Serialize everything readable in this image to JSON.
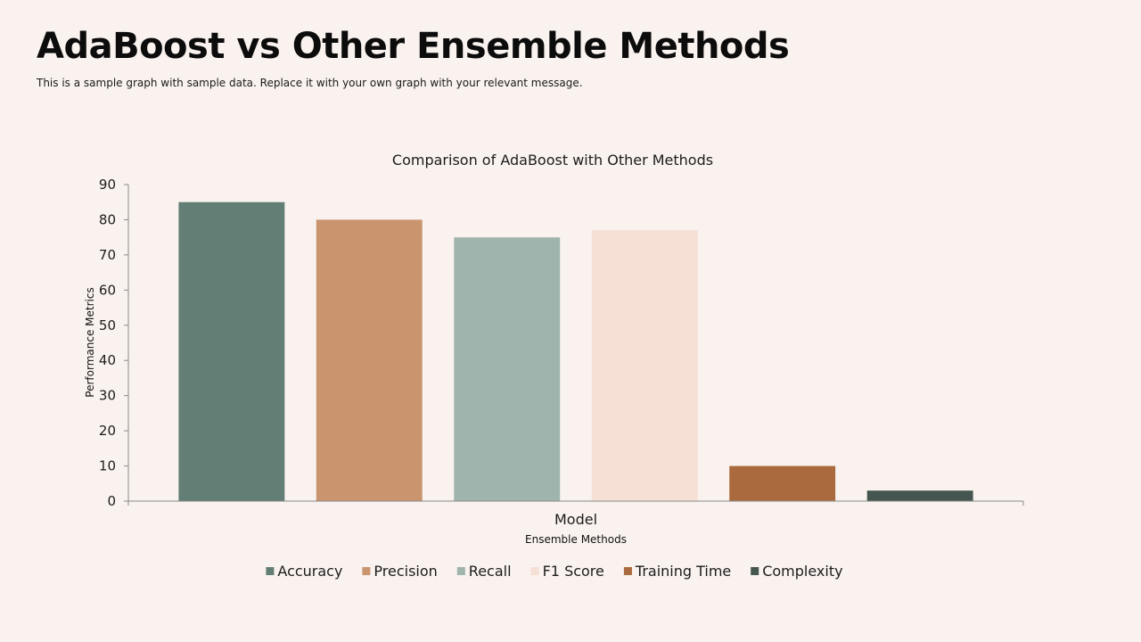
{
  "slide": {
    "title": "AdaBoost vs Other Ensemble Methods",
    "subtitle": "This is a sample graph with sample data. Replace it with your own graph with your relevant message."
  },
  "chart_data": {
    "type": "bar",
    "title": "Comparison of AdaBoost with Other Methods",
    "xlabel": "Ensemble Methods",
    "ylabel": "Performance Metrics",
    "categories": [
      "Model"
    ],
    "series": [
      {
        "name": "Accuracy",
        "values": [
          85
        ],
        "color": "#637e75"
      },
      {
        "name": "Precision",
        "values": [
          80
        ],
        "color": "#c9946e"
      },
      {
        "name": "Recall",
        "values": [
          75
        ],
        "color": "#a0b4ae"
      },
      {
        "name": "F1 Score",
        "values": [
          77
        ],
        "color": "#f6dfd5"
      },
      {
        "name": "Training Time",
        "values": [
          10
        ],
        "color": "#ab6a3e"
      },
      {
        "name": "Complexity",
        "values": [
          3
        ],
        "color": "#44564f"
      }
    ],
    "ylim": [
      0,
      90
    ],
    "yticks": [
      0,
      10,
      20,
      30,
      40,
      50,
      60,
      70,
      80,
      90
    ],
    "grid": false,
    "legend_position": "bottom"
  }
}
